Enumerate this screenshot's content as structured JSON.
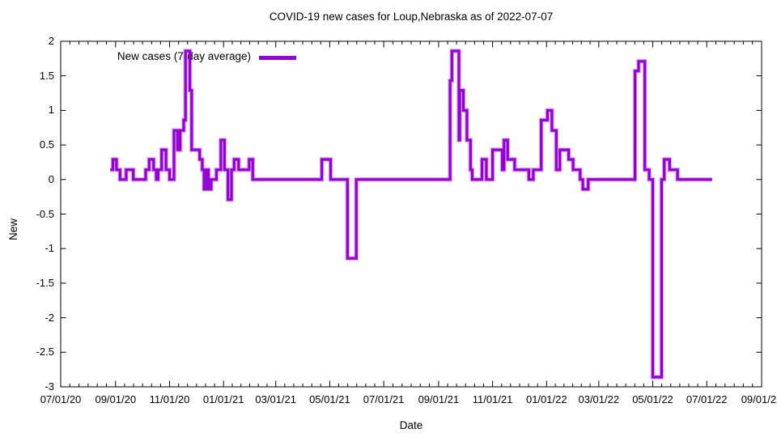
{
  "chart_data": {
    "type": "line",
    "title": "COVID-19 new cases for Loup,Nebraska as of 2022-07-07",
    "xlabel": "Date",
    "ylabel": "New",
    "ylim": [
      -3,
      2
    ],
    "y_tick_step": 0.5,
    "grid": false,
    "x_range": [
      "2020-07-01",
      "2022-09-01"
    ],
    "x_ticks": [
      "2020-07-01",
      "2020-09-01",
      "2020-11-01",
      "2021-01-01",
      "2021-03-01",
      "2021-05-01",
      "2021-07-01",
      "2021-09-01",
      "2021-11-01",
      "2022-01-01",
      "2022-03-01",
      "2022-05-01",
      "2022-07-01",
      "2022-09-01"
    ],
    "x_tick_labels": [
      "07/01/20",
      "09/01/20",
      "11/01/20",
      "01/01/21",
      "03/01/21",
      "05/01/21",
      "07/01/21",
      "09/01/21",
      "11/01/21",
      "01/01/22",
      "03/01/22",
      "05/01/22",
      "07/01/22",
      "09/01/22"
    ],
    "y_tick_labels": [
      "2",
      "1.5",
      "1",
      "0.5",
      "0",
      "-0.5",
      "-1",
      "-1.5",
      "-2",
      "-2.5",
      "-3"
    ],
    "y_tick_values": [
      2,
      1.5,
      1,
      0.5,
      0,
      -0.5,
      -1,
      -1.5,
      -2,
      -2.5,
      -3
    ],
    "legend": {
      "label": "New cases (7-day average)",
      "position": "inside-top-left"
    },
    "series": [
      {
        "name": "New cases (7-day average)",
        "color": "#9400d3",
        "style": "steps",
        "end_date": "2022-07-07",
        "points": [
          [
            "2020-08-26",
            0.14
          ],
          [
            "2020-08-29",
            0.29
          ],
          [
            "2020-09-02",
            0.14
          ],
          [
            "2020-09-06",
            0.0
          ],
          [
            "2020-09-13",
            0.14
          ],
          [
            "2020-09-21",
            0.0
          ],
          [
            "2020-10-05",
            0.14
          ],
          [
            "2020-10-09",
            0.29
          ],
          [
            "2020-10-14",
            0.14
          ],
          [
            "2020-10-17",
            0.0
          ],
          [
            "2020-10-19",
            0.14
          ],
          [
            "2020-10-23",
            0.43
          ],
          [
            "2020-10-28",
            0.14
          ],
          [
            "2020-11-01",
            0.0
          ],
          [
            "2020-11-06",
            0.71
          ],
          [
            "2020-11-10",
            0.43
          ],
          [
            "2020-11-13",
            0.71
          ],
          [
            "2020-11-17",
            0.86
          ],
          [
            "2020-11-19",
            1.86
          ],
          [
            "2020-11-24",
            1.29
          ],
          [
            "2020-11-26",
            0.43
          ],
          [
            "2020-12-05",
            0.29
          ],
          [
            "2020-12-08",
            0.14
          ],
          [
            "2020-12-10",
            -0.14
          ],
          [
            "2020-12-13",
            0.14
          ],
          [
            "2020-12-15",
            -0.14
          ],
          [
            "2020-12-18",
            0.0
          ],
          [
            "2020-12-24",
            0.14
          ],
          [
            "2020-12-29",
            0.57
          ],
          [
            "2021-01-02",
            0.14
          ],
          [
            "2021-01-06",
            -0.29
          ],
          [
            "2021-01-10",
            0.14
          ],
          [
            "2021-01-13",
            0.29
          ],
          [
            "2021-01-18",
            0.14
          ],
          [
            "2021-01-30",
            0.29
          ],
          [
            "2021-02-03",
            0.0
          ],
          [
            "2021-04-22",
            0.29
          ],
          [
            "2021-05-02",
            0.0
          ],
          [
            "2021-05-21",
            -1.14
          ],
          [
            "2021-05-31",
            0.0
          ],
          [
            "2021-09-14",
            1.43
          ],
          [
            "2021-09-16",
            1.86
          ],
          [
            "2021-09-24",
            0.57
          ],
          [
            "2021-09-25",
            1.29
          ],
          [
            "2021-09-29",
            1.0
          ],
          [
            "2021-10-03",
            0.57
          ],
          [
            "2021-10-07",
            0.14
          ],
          [
            "2021-10-09",
            0.0
          ],
          [
            "2021-10-20",
            0.29
          ],
          [
            "2021-10-25",
            0.0
          ],
          [
            "2021-11-01",
            0.43
          ],
          [
            "2021-11-12",
            0.14
          ],
          [
            "2021-11-14",
            0.57
          ],
          [
            "2021-11-18",
            0.29
          ],
          [
            "2021-11-26",
            0.14
          ],
          [
            "2021-12-12",
            0.0
          ],
          [
            "2021-12-17",
            0.14
          ],
          [
            "2021-12-26",
            0.86
          ],
          [
            "2022-01-02",
            1.0
          ],
          [
            "2022-01-07",
            0.71
          ],
          [
            "2022-01-12",
            0.14
          ],
          [
            "2022-01-16",
            0.43
          ],
          [
            "2022-01-26",
            0.29
          ],
          [
            "2022-01-31",
            0.14
          ],
          [
            "2022-02-08",
            0.0
          ],
          [
            "2022-02-11",
            -0.14
          ],
          [
            "2022-02-17",
            0.0
          ],
          [
            "2022-04-11",
            1.57
          ],
          [
            "2022-04-15",
            1.71
          ],
          [
            "2022-04-22",
            0.14
          ],
          [
            "2022-04-27",
            0.0
          ],
          [
            "2022-05-01",
            -2.86
          ],
          [
            "2022-05-11",
            0.0
          ],
          [
            "2022-05-14",
            0.29
          ],
          [
            "2022-05-20",
            0.14
          ],
          [
            "2022-05-29",
            0.0
          ]
        ]
      }
    ]
  },
  "colors": {
    "line": "#9400d3",
    "axis": "#000000",
    "background": "#ffffff",
    "text": "#000000"
  }
}
